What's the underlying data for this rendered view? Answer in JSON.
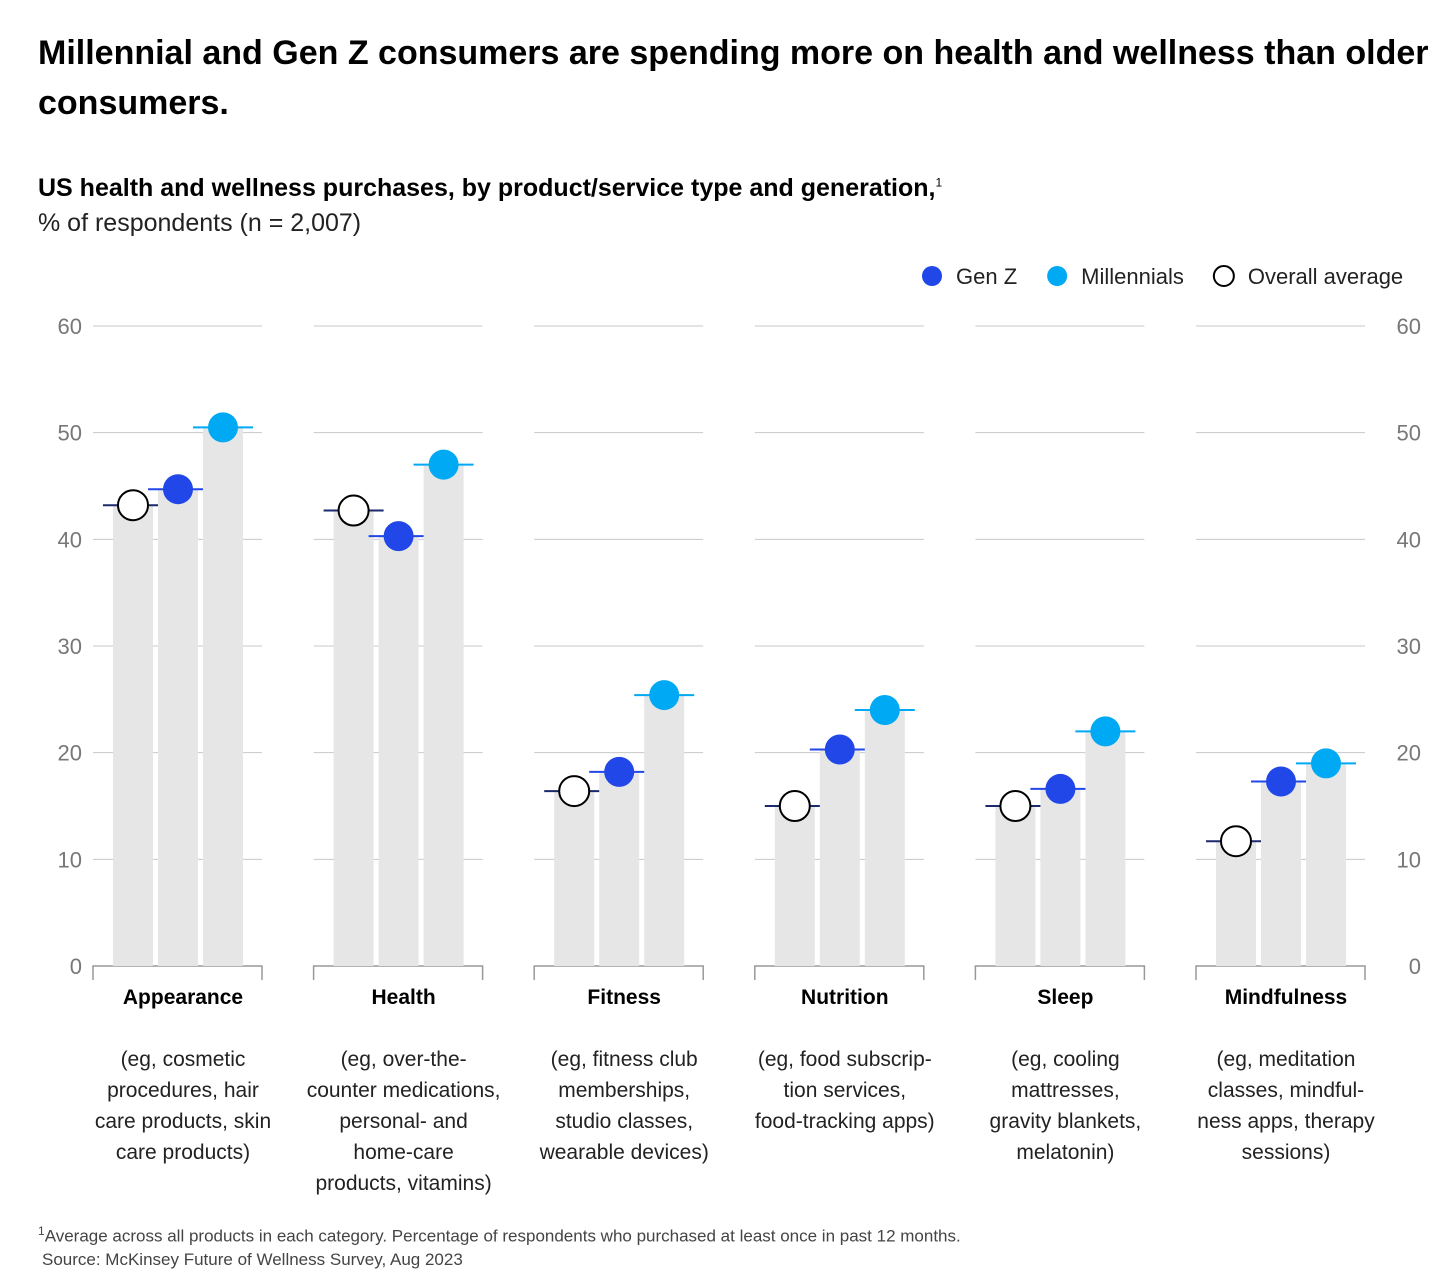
{
  "chart_data": {
    "type": "bar",
    "title": "Millennial and Gen Z consumers are spending more on health and wellness than older consumers.",
    "subtitle": "US health and wellness purchases, by product/service type and generation,",
    "footnote_marker": "1",
    "y_label": "% of respondents (n = 2,007)",
    "categories": [
      "Appearance",
      "Health",
      "Fitness",
      "Nutrition",
      "Sleep",
      "Mindfulness"
    ],
    "descriptions": [
      [
        "(eg, cosmetic",
        "procedures, hair",
        "care products, skin",
        "care products)"
      ],
      [
        "(eg, over-the-",
        "counter medications,",
        "personal- and",
        "home-care",
        "products, vitamins)"
      ],
      [
        "(eg, fitness club",
        "memberships,",
        "studio classes,",
        "wearable devices)"
      ],
      [
        "(eg, food subscrip-",
        "tion services,",
        "food-tracking apps)"
      ],
      [
        "(eg, cooling",
        "mattresses,",
        "gravity blankets,",
        "melatonin)"
      ],
      [
        "(eg, meditation",
        "classes, mindful-",
        "ness apps, therapy",
        "sessions)"
      ]
    ],
    "series": [
      {
        "name": "Overall average",
        "color": "#ffffff",
        "values": [
          43.2,
          42.7,
          16.4,
          15.0,
          15.0,
          11.7
        ]
      },
      {
        "name": "Gen Z",
        "color": "#2147e8",
        "values": [
          44.7,
          40.3,
          18.2,
          20.3,
          16.6,
          17.3
        ]
      },
      {
        "name": "Millennials",
        "color": "#00a9f4",
        "values": [
          50.5,
          47.0,
          25.4,
          24.0,
          22.0,
          19.0
        ]
      }
    ],
    "bar_color": "#e6e6e6",
    "ylim": [
      0,
      60
    ],
    "yticks": [
      0,
      10,
      20,
      30,
      40,
      50,
      60
    ],
    "grid": true,
    "legend_position": "top-right",
    "footnote": "Average across all products in each category. Percentage of respondents who purchased at least once in past 12 months.",
    "source": "Source: McKinsey Future of Wellness Survey, Aug 2023"
  }
}
